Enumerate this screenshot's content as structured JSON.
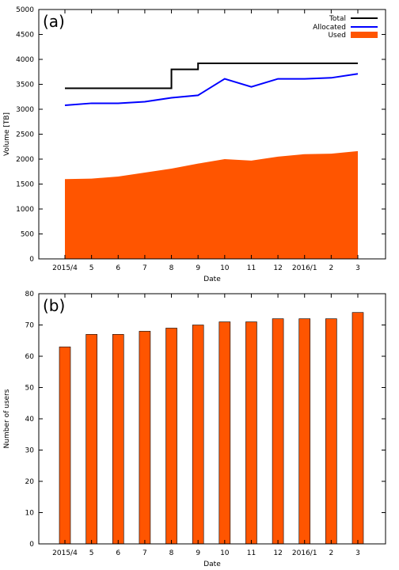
{
  "chart_data": [
    {
      "type": "line",
      "panel_label": "(a)",
      "xlabel": "Date",
      "ylabel": "Volume [TB]",
      "ylim": [
        0,
        5000
      ],
      "yticks": [
        0,
        500,
        1000,
        1500,
        2000,
        2500,
        3000,
        3500,
        4000,
        4500,
        5000
      ],
      "categories": [
        "2015/4",
        "5",
        "6",
        "7",
        "8",
        "9",
        "10",
        "11",
        "12",
        "2016/1",
        "2",
        "3"
      ],
      "legend_position": "top-right",
      "series": [
        {
          "name": "Total",
          "style": "step",
          "color": "#000000",
          "values": [
            3420,
            3420,
            3420,
            3420,
            3800,
            3920,
            3920,
            3920,
            3920,
            3920,
            3920,
            3920
          ]
        },
        {
          "name": "Allocated",
          "style": "line",
          "color": "#0000ff",
          "values": [
            3080,
            3120,
            3120,
            3150,
            3230,
            3280,
            3610,
            3450,
            3610,
            3610,
            3630,
            3710
          ]
        },
        {
          "name": "Used",
          "style": "area",
          "color": "#ff5500",
          "values": [
            1600,
            1610,
            1650,
            1730,
            1810,
            1910,
            2000,
            1970,
            2050,
            2100,
            2110,
            2160
          ]
        }
      ]
    },
    {
      "type": "bar",
      "panel_label": "(b)",
      "xlabel": "Date",
      "ylabel": "Number of users",
      "ylim": [
        0,
        80
      ],
      "yticks": [
        0,
        10,
        20,
        30,
        40,
        50,
        60,
        70,
        80
      ],
      "categories": [
        "2015/4",
        "5",
        "6",
        "7",
        "8",
        "9",
        "10",
        "11",
        "12",
        "2016/1",
        "2",
        "3"
      ],
      "color": "#ff5500",
      "values": [
        63,
        67,
        67,
        68,
        69,
        70,
        71,
        71,
        72,
        72,
        72,
        74
      ]
    }
  ]
}
